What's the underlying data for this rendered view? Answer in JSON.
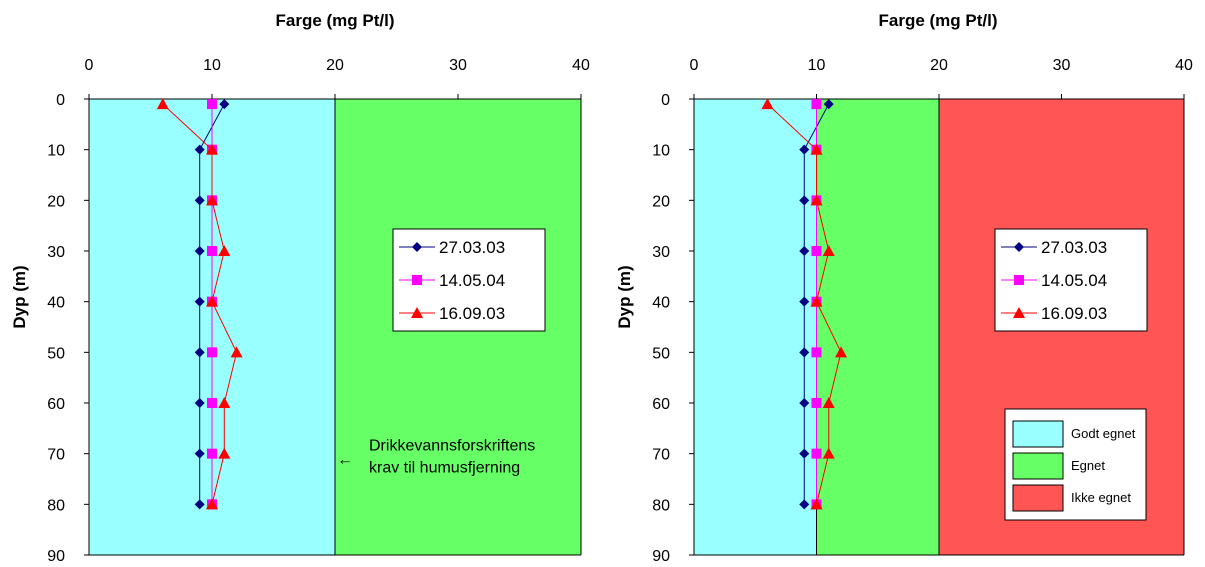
{
  "chart_data": [
    {
      "type": "line",
      "title": "Farge (mg Pt/l)",
      "xlabel": "Farge (mg Pt/l)",
      "ylabel": "Dyp (m)",
      "xlim": [
        0,
        40
      ],
      "ylim": [
        0,
        90
      ],
      "y_inverted": true,
      "x_axis_position": "top",
      "x_ticks": [
        0,
        10,
        20,
        30,
        40
      ],
      "y_ticks": [
        0,
        10,
        20,
        30,
        40,
        50,
        60,
        70,
        80,
        90
      ],
      "grid": false,
      "legend_position": "center-right",
      "zones": [
        {
          "from": 0,
          "to": 20,
          "color": "#99FFFF"
        },
        {
          "from": 20,
          "to": 40,
          "color": "#66FF66"
        }
      ],
      "series": [
        {
          "name": "27.03.03",
          "color": "#000080",
          "marker": "diamond",
          "points": [
            [
              11,
              1
            ],
            [
              9,
              10
            ],
            [
              9,
              20
            ],
            [
              9,
              30
            ],
            [
              9,
              40
            ],
            [
              9,
              50
            ],
            [
              9,
              60
            ],
            [
              9,
              70
            ],
            [
              9,
              80
            ]
          ]
        },
        {
          "name": "14.05.04",
          "color": "#FF00FF",
          "marker": "square",
          "points": [
            [
              10,
              1
            ],
            [
              10,
              10
            ],
            [
              10,
              20
            ],
            [
              10,
              30
            ],
            [
              10,
              40
            ],
            [
              10,
              50
            ],
            [
              10,
              60
            ],
            [
              10,
              70
            ],
            [
              10,
              80
            ]
          ]
        },
        {
          "name": "16.09.03",
          "color": "#FF0000",
          "marker": "triangle",
          "points": [
            [
              6,
              1
            ],
            [
              10,
              10
            ],
            [
              10,
              20
            ],
            [
              11,
              30
            ],
            [
              10,
              40
            ],
            [
              12,
              50
            ],
            [
              11,
              60
            ],
            [
              11,
              70
            ],
            [
              10,
              80
            ]
          ]
        }
      ],
      "annotation": {
        "line1": "Drikkevannsforskriftens",
        "line2": "krav til humusfjerning",
        "arrow": "←",
        "target_x": 20,
        "target_y": 71
      }
    },
    {
      "type": "line",
      "title": "Farge (mg Pt/l)",
      "xlabel": "Farge (mg Pt/l)",
      "ylabel": "Dyp (m)",
      "xlim": [
        0,
        40
      ],
      "ylim": [
        0,
        90
      ],
      "y_inverted": true,
      "x_axis_position": "top",
      "x_ticks": [
        0,
        10,
        20,
        30,
        40
      ],
      "y_ticks": [
        0,
        10,
        20,
        30,
        40,
        50,
        60,
        70,
        80,
        90
      ],
      "grid": false,
      "legend_position": "center-right",
      "zones": [
        {
          "from": 0,
          "to": 10,
          "color": "#99FFFF",
          "name": "Godt egnet"
        },
        {
          "from": 10,
          "to": 20,
          "color": "#66FF66",
          "name": "Egnet"
        },
        {
          "from": 20,
          "to": 40,
          "color": "#FF5555",
          "name": "Ikke egnet"
        }
      ],
      "zone_legend_position": "bottom-right",
      "series": [
        {
          "name": "27.03.03",
          "color": "#000080",
          "marker": "diamond",
          "points": [
            [
              11,
              1
            ],
            [
              9,
              10
            ],
            [
              9,
              20
            ],
            [
              9,
              30
            ],
            [
              9,
              40
            ],
            [
              9,
              50
            ],
            [
              9,
              60
            ],
            [
              9,
              70
            ],
            [
              9,
              80
            ]
          ]
        },
        {
          "name": "14.05.04",
          "color": "#FF00FF",
          "marker": "square",
          "points": [
            [
              10,
              1
            ],
            [
              10,
              10
            ],
            [
              10,
              20
            ],
            [
              10,
              30
            ],
            [
              10,
              40
            ],
            [
              10,
              50
            ],
            [
              10,
              60
            ],
            [
              10,
              70
            ],
            [
              10,
              80
            ]
          ]
        },
        {
          "name": "16.09.03",
          "color": "#FF0000",
          "marker": "triangle",
          "points": [
            [
              6,
              1
            ],
            [
              10,
              10
            ],
            [
              10,
              20
            ],
            [
              11,
              30
            ],
            [
              10,
              40
            ],
            [
              12,
              50
            ],
            [
              11,
              60
            ],
            [
              11,
              70
            ],
            [
              10,
              80
            ]
          ]
        }
      ]
    }
  ]
}
